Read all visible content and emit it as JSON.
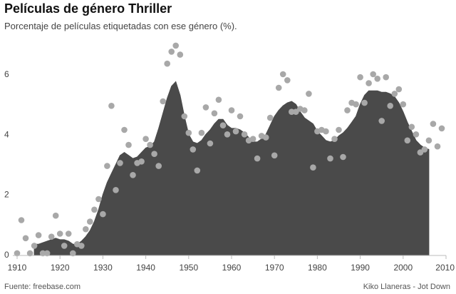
{
  "header": {
    "title": "Películas de género Thriller",
    "subtitle": "Porcentaje de películas etiquetadas con ese género (%)."
  },
  "footer": {
    "source": "Fuente: freebase.com",
    "credit": "Kiko Llaneras - Jot Down"
  },
  "colors": {
    "area": "#4a4a4a",
    "points": "#a8a8a8",
    "axis": "#bbbbbb"
  },
  "chart_data": {
    "type": "area",
    "title": "Películas de género Thriller",
    "subtitle": "Porcentaje de películas etiquetadas con ese género (%).",
    "xlabel": "",
    "ylabel": "",
    "xlim": [
      1908,
      2010
    ],
    "ylim": [
      0,
      7
    ],
    "x_ticks": [
      1910,
      1920,
      1930,
      1940,
      1950,
      1960,
      1970,
      1980,
      1990,
      2000,
      2010
    ],
    "y_ticks": [
      0,
      2,
      4,
      6
    ],
    "grid": false,
    "legend": "none",
    "series": [
      {
        "kind": "area",
        "x": [
          1914,
          1915,
          1916,
          1917,
          1918,
          1919,
          1920,
          1921,
          1922,
          1923,
          1924,
          1925,
          1926,
          1927,
          1928,
          1929,
          1930,
          1931,
          1932,
          1933,
          1934,
          1935,
          1936,
          1937,
          1938,
          1939,
          1940,
          1941,
          1942,
          1943,
          1944,
          1945,
          1946,
          1947,
          1948,
          1949,
          1950,
          1951,
          1952,
          1953,
          1954,
          1955,
          1956,
          1957,
          1958,
          1959,
          1960,
          1961,
          1962,
          1963,
          1964,
          1965,
          1966,
          1967,
          1968,
          1969,
          1970,
          1971,
          1972,
          1973,
          1974,
          1975,
          1976,
          1977,
          1978,
          1979,
          1980,
          1981,
          1982,
          1983,
          1984,
          1985,
          1986,
          1987,
          1988,
          1989,
          1990,
          1991,
          1992,
          1993,
          1994,
          1995,
          1996,
          1997,
          1998,
          1999,
          2000,
          2001,
          2002,
          2003,
          2004,
          2005,
          2006
        ],
        "values": [
          0.35,
          0.35,
          0.4,
          0.45,
          0.5,
          0.55,
          0.5,
          0.5,
          0.45,
          0.35,
          0.35,
          0.45,
          0.6,
          0.8,
          1.1,
          1.5,
          2.0,
          2.4,
          2.7,
          3.0,
          3.3,
          3.4,
          3.3,
          3.2,
          3.25,
          3.4,
          3.55,
          3.6,
          3.75,
          4.2,
          4.7,
          5.2,
          5.6,
          5.75,
          5.3,
          4.6,
          4.0,
          3.75,
          3.7,
          3.8,
          4.0,
          4.15,
          4.35,
          4.5,
          4.5,
          4.3,
          4.2,
          4.2,
          4.15,
          4.05,
          3.9,
          3.75,
          3.75,
          3.85,
          4.0,
          4.3,
          4.6,
          4.8,
          4.95,
          5.05,
          5.1,
          5.0,
          4.75,
          4.55,
          4.45,
          4.35,
          4.1,
          3.95,
          3.8,
          3.75,
          3.8,
          3.95,
          4.05,
          4.2,
          4.4,
          4.6,
          5.0,
          5.3,
          5.45,
          5.45,
          5.45,
          5.4,
          5.4,
          5.35,
          5.25,
          5.05,
          4.75,
          4.4,
          4.1,
          3.8,
          3.65,
          3.55,
          3.5
        ]
      },
      {
        "kind": "scatter",
        "points": [
          [
            1910,
            0.05
          ],
          [
            1911,
            1.15
          ],
          [
            1912,
            0.55
          ],
          [
            1913,
            0.05
          ],
          [
            1914,
            0.3
          ],
          [
            1915,
            0.65
          ],
          [
            1916,
            0.05
          ],
          [
            1917,
            0.05
          ],
          [
            1918,
            0.6
          ],
          [
            1919,
            1.3
          ],
          [
            1920,
            0.7
          ],
          [
            1921,
            0.3
          ],
          [
            1922,
            0.7
          ],
          [
            1923,
            0.05
          ],
          [
            1924,
            0.35
          ],
          [
            1925,
            0.3
          ],
          [
            1926,
            0.85
          ],
          [
            1927,
            1.1
          ],
          [
            1928,
            1.5
          ],
          [
            1929,
            1.85
          ],
          [
            1930,
            1.35
          ],
          [
            1931,
            2.95
          ],
          [
            1932,
            4.95
          ],
          [
            1933,
            2.15
          ],
          [
            1934,
            3.05
          ],
          [
            1935,
            4.15
          ],
          [
            1936,
            3.65
          ],
          [
            1937,
            2.65
          ],
          [
            1938,
            3.05
          ],
          [
            1939,
            3.1
          ],
          [
            1940,
            3.85
          ],
          [
            1941,
            3.65
          ],
          [
            1942,
            3.35
          ],
          [
            1943,
            2.95
          ],
          [
            1944,
            5.1
          ],
          [
            1945,
            6.35
          ],
          [
            1946,
            6.75
          ],
          [
            1947,
            6.95
          ],
          [
            1948,
            6.65
          ],
          [
            1949,
            4.6
          ],
          [
            1950,
            4.05
          ],
          [
            1951,
            3.5
          ],
          [
            1952,
            2.8
          ],
          [
            1953,
            4.05
          ],
          [
            1954,
            4.9
          ],
          [
            1955,
            3.7
          ],
          [
            1956,
            4.7
          ],
          [
            1957,
            5.15
          ],
          [
            1958,
            4.3
          ],
          [
            1959,
            4.0
          ],
          [
            1960,
            4.8
          ],
          [
            1961,
            4.1
          ],
          [
            1962,
            4.6
          ],
          [
            1963,
            4.0
          ],
          [
            1964,
            3.8
          ],
          [
            1965,
            3.85
          ],
          [
            1966,
            3.2
          ],
          [
            1967,
            3.95
          ],
          [
            1968,
            3.9
          ],
          [
            1969,
            4.55
          ],
          [
            1970,
            3.3
          ],
          [
            1971,
            5.55
          ],
          [
            1972,
            6.0
          ],
          [
            1973,
            5.8
          ],
          [
            1974,
            4.75
          ],
          [
            1975,
            4.75
          ],
          [
            1976,
            4.85
          ],
          [
            1977,
            4.8
          ],
          [
            1978,
            5.35
          ],
          [
            1979,
            2.9
          ],
          [
            1980,
            4.1
          ],
          [
            1981,
            4.15
          ],
          [
            1982,
            4.1
          ],
          [
            1983,
            3.2
          ],
          [
            1984,
            3.85
          ],
          [
            1985,
            4.15
          ],
          [
            1986,
            3.25
          ],
          [
            1987,
            4.8
          ],
          [
            1988,
            5.05
          ],
          [
            1989,
            5.0
          ],
          [
            1990,
            5.9
          ],
          [
            1991,
            5.05
          ],
          [
            1992,
            5.7
          ],
          [
            1993,
            6.0
          ],
          [
            1994,
            5.85
          ],
          [
            1995,
            4.45
          ],
          [
            1996,
            5.9
          ],
          [
            1997,
            4.95
          ],
          [
            1998,
            5.35
          ],
          [
            1999,
            5.5
          ],
          [
            2000,
            5.0
          ],
          [
            2001,
            3.8
          ],
          [
            2002,
            4.25
          ],
          [
            2003,
            4.0
          ],
          [
            2004,
            3.4
          ],
          [
            2005,
            3.5
          ],
          [
            2006,
            3.8
          ],
          [
            2007,
            4.35
          ],
          [
            2008,
            3.6
          ],
          [
            2009,
            4.2
          ]
        ]
      }
    ]
  }
}
